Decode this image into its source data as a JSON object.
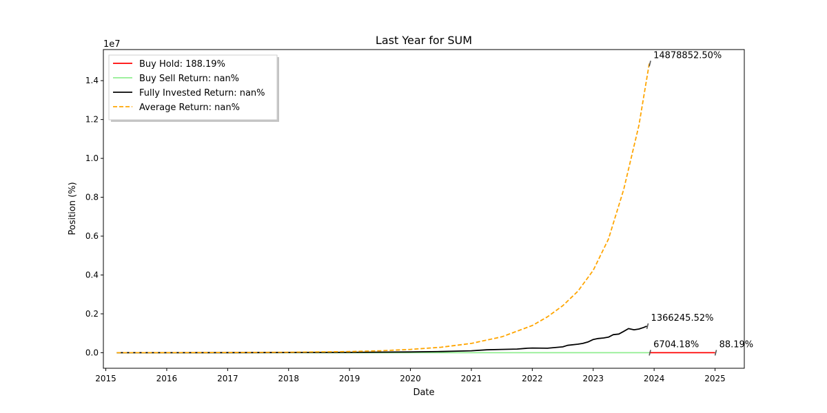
{
  "chart_data": {
    "type": "line",
    "title": "Last Year for SUM",
    "xlabel": "Date",
    "ylabel": "Position (%)",
    "y_offset_text": "1e7",
    "xlim": [
      2014.96,
      2025.48
    ],
    "ylim": [
      -800000,
      15600000
    ],
    "x_ticks": [
      2015,
      2016,
      2017,
      2018,
      2019,
      2020,
      2021,
      2022,
      2023,
      2024,
      2025
    ],
    "x_tick_labels": [
      "2015",
      "2016",
      "2017",
      "2018",
      "2019",
      "2020",
      "2021",
      "2022",
      "2023",
      "2024",
      "2025"
    ],
    "y_ticks": [
      0,
      2000000,
      4000000,
      6000000,
      8000000,
      10000000,
      12000000,
      14000000
    ],
    "y_tick_labels": [
      "0.0",
      "0.2",
      "0.4",
      "0.6",
      "0.8",
      "1.0",
      "1.2",
      "1.4"
    ],
    "legend_position": "top-left",
    "series": [
      {
        "name": "Buy Hold: 188.19%",
        "color": "#ff0000",
        "style": "solid",
        "x": [
          2023.92,
          2025.0
        ],
        "y": [
          0,
          0
        ]
      },
      {
        "name": "Buy Sell Return: nan%",
        "color": "#90ee90",
        "style": "solid",
        "x": [
          2015.18,
          2023.92
        ],
        "y": [
          0,
          0
        ]
      },
      {
        "name": "Fully Invested Return: nan%",
        "color": "#000000",
        "style": "solid",
        "x": [
          2015.18,
          2016.0,
          2017.0,
          2018.0,
          2019.0,
          2020.0,
          2020.5,
          2021.0,
          2021.25,
          2021.5,
          2021.75,
          2021.92,
          2022.0,
          2022.25,
          2022.5,
          2022.58,
          2022.75,
          2022.83,
          2022.92,
          2023.0,
          2023.08,
          2023.17,
          2023.25,
          2023.33,
          2023.42,
          2023.5,
          2023.58,
          2023.67,
          2023.75,
          2023.83,
          2023.88
        ],
        "y": [
          0,
          2000,
          5000,
          10000,
          20000,
          40000,
          60000,
          100000,
          150000,
          170000,
          190000,
          230000,
          240000,
          230000,
          300000,
          380000,
          440000,
          480000,
          560000,
          680000,
          730000,
          760000,
          800000,
          930000,
          960000,
          1100000,
          1240000,
          1180000,
          1220000,
          1300000,
          1366245
        ]
      },
      {
        "name": "Average Return: nan%",
        "color": "#ffa500",
        "style": "dashed",
        "x": [
          2015.18,
          2016.0,
          2017.0,
          2018.0,
          2019.0,
          2019.5,
          2020.0,
          2020.5,
          2021.0,
          2021.5,
          2022.0,
          2022.25,
          2022.5,
          2022.75,
          2023.0,
          2023.25,
          2023.5,
          2023.75,
          2023.92
        ],
        "y": [
          0,
          3000,
          10000,
          25000,
          60000,
          100000,
          170000,
          280000,
          480000,
          820000,
          1400000,
          1850000,
          2420000,
          3170000,
          4240000,
          5850000,
          8400000,
          11700000,
          14878852
        ]
      }
    ],
    "annotations": [
      {
        "text": "14878852.50%",
        "x": 2023.92,
        "y": 14878852,
        "color": "#ffa500"
      },
      {
        "text": "1366245.52%",
        "x": 2023.88,
        "y": 1366245,
        "color": "#000000"
      },
      {
        "text": "6704.18%",
        "x": 2023.92,
        "y": 0,
        "color": "#ff0000"
      },
      {
        "text": "88.19%",
        "x": 2025.0,
        "y": 0,
        "color": "#ff0000"
      }
    ]
  }
}
